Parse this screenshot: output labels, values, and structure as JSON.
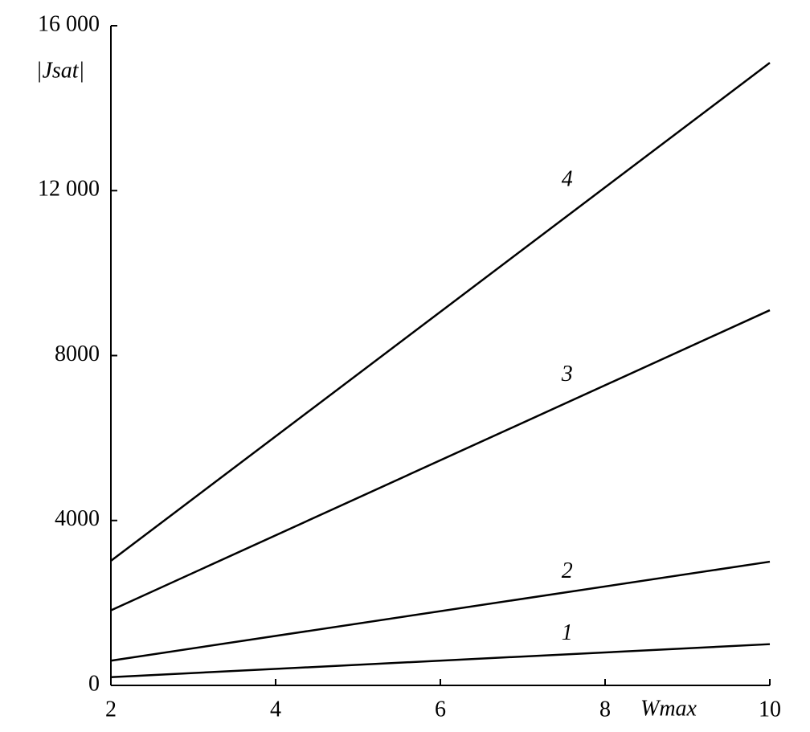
{
  "chart_data": {
    "type": "line",
    "y_label": "|Jsat|",
    "x_label": "Wmax",
    "x": [
      2,
      10
    ],
    "series": [
      {
        "name": "1",
        "color": "#000000",
        "values": [
          200,
          1000
        ]
      },
      {
        "name": "2",
        "color": "#000000",
        "values": [
          600,
          3000
        ]
      },
      {
        "name": "3",
        "color": "#000000",
        "values": [
          1820,
          9100
        ]
      },
      {
        "name": "4",
        "color": "#000000",
        "values": [
          3020,
          15100
        ]
      }
    ],
    "xlim": [
      2,
      10
    ],
    "xticks": [
      2,
      4,
      6,
      8,
      10
    ],
    "ylim": [
      0,
      16000
    ],
    "yticks": [
      0,
      4000,
      8000,
      {
        "value": 12000,
        "label": "12 000"
      },
      {
        "value": 16000,
        "label": "16 000"
      }
    ],
    "grid": false
  }
}
